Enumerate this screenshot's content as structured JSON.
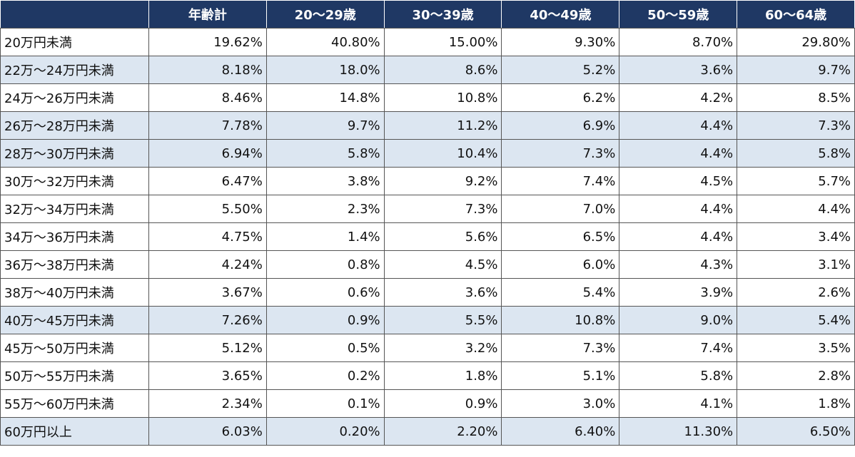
{
  "table": {
    "header": [
      "年齢計",
      "20～29歳",
      "30～39歳",
      "40～49歳",
      "50～59歳",
      "60～64歳"
    ],
    "rows": [
      [
        "20万円未満",
        "19.62%",
        "40.80%",
        "15.00%",
        "9.30%",
        "8.70%",
        "29.80%"
      ],
      [
        "22万～24万円未満",
        "8.18%",
        "18.0%",
        "8.6%",
        "5.2%",
        "3.6%",
        "9.7%"
      ],
      [
        "24万～26万円未満",
        "8.46%",
        "14.8%",
        "10.8%",
        "6.2%",
        "4.2%",
        "8.5%"
      ],
      [
        "26万～28万円未満",
        "7.78%",
        "9.7%",
        "11.2%",
        "6.9%",
        "4.4%",
        "7.3%"
      ],
      [
        "28万～30万円未満",
        "6.94%",
        "5.8%",
        "10.4%",
        "7.3%",
        "4.4%",
        "5.8%"
      ],
      [
        "30万～32万円未満",
        "6.47%",
        "3.8%",
        "9.2%",
        "7.4%",
        "4.5%",
        "5.7%"
      ],
      [
        "32万～34万円未満",
        "5.50%",
        "2.3%",
        "7.3%",
        "7.0%",
        "4.4%",
        "4.4%"
      ],
      [
        "34万～36万円未満",
        "4.75%",
        "1.4%",
        "5.6%",
        "6.5%",
        "4.4%",
        "3.4%"
      ],
      [
        "36万～38万円未満",
        "4.24%",
        "0.8%",
        "4.5%",
        "6.0%",
        "4.3%",
        "3.1%"
      ],
      [
        "38万～40万円未満",
        "3.67%",
        "0.6%",
        "3.6%",
        "5.4%",
        "3.9%",
        "2.6%"
      ],
      [
        "40万～45万円未満",
        "7.26%",
        "0.9%",
        "5.5%",
        "10.8%",
        "9.0%",
        "5.4%"
      ],
      [
        "45万～50万円未満",
        "5.12%",
        "0.5%",
        "3.2%",
        "7.3%",
        "7.4%",
        "3.5%"
      ],
      [
        "50万～55万円未満",
        "3.65%",
        "0.2%",
        "1.8%",
        "5.1%",
        "5.8%",
        "2.8%"
      ],
      [
        "55万～60万円未満",
        "2.34%",
        "0.1%",
        "0.9%",
        "3.0%",
        "4.1%",
        "1.8%"
      ],
      [
        "60万円以上",
        "6.03%",
        "0.20%",
        "2.20%",
        "6.40%",
        "11.30%",
        "6.50%"
      ]
    ]
  }
}
